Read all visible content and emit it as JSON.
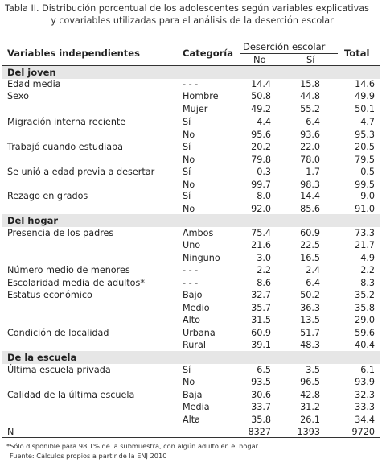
{
  "title": {
    "line1": "Tabla II. Distribución porcentual de los adolescentes según variables explicativas",
    "line2": "y covariables utilizadas para el análisis de la deserción escolar"
  },
  "header": {
    "variables": "Variables independientes",
    "categoria": "Categoría",
    "desercion": "Deserción escolar",
    "no": "No",
    "si": "Sí",
    "total": "Total"
  },
  "sections": {
    "joven": "Del joven",
    "hogar": "Del hogar",
    "escuela": "De la escuela"
  },
  "rows": [
    {
      "var": "Edad media",
      "cat": "- - -",
      "no": "14.4",
      "si": "15.8",
      "total": "14.6"
    },
    {
      "var": "Sexo",
      "cat": "Hombre",
      "no": "50.8",
      "si": "44.8",
      "total": "49.9"
    },
    {
      "var": "",
      "cat": "Mujer",
      "no": "49.2",
      "si": "55.2",
      "total": "50.1"
    },
    {
      "var": "Migración interna reciente",
      "cat": "Sí",
      "no": "4.4",
      "si": "6.4",
      "total": "4.7"
    },
    {
      "var": "",
      "cat": "No",
      "no": "95.6",
      "si": "93.6",
      "total": "95.3"
    },
    {
      "var": "Trabajó cuando estudiaba",
      "cat": "Sí",
      "no": "20.2",
      "si": "22.0",
      "total": "20.5"
    },
    {
      "var": "",
      "cat": "No",
      "no": "79.8",
      "si": "78.0",
      "total": "79.5"
    },
    {
      "var": "Se unió a edad previa a desertar",
      "cat": "Sí",
      "no": "0.3",
      "si": "1.7",
      "total": "0.5"
    },
    {
      "var": "",
      "cat": "No",
      "no": "99.7",
      "si": "98.3",
      "total": "99.5"
    },
    {
      "var": "Rezago en grados",
      "cat": "Sí",
      "no": "8.0",
      "si": "14.4",
      "total": "9.0"
    },
    {
      "var": "",
      "cat": "No",
      "no": "92.0",
      "si": "85.6",
      "total": "91.0"
    },
    {
      "var": "Presencia de los padres",
      "cat": "Ambos",
      "no": "75.4",
      "si": "60.9",
      "total": "73.3"
    },
    {
      "var": "",
      "cat": "Uno",
      "no": "21.6",
      "si": "22.5",
      "total": "21.7"
    },
    {
      "var": "",
      "cat": "Ninguno",
      "no": "3.0",
      "si": "16.5",
      "total": "4.9"
    },
    {
      "var": "Número medio de menores",
      "cat": "- - -",
      "no": "2.2",
      "si": "2.4",
      "total": "2.2"
    },
    {
      "var": "Escolaridad media de adultos*",
      "cat": "- - -",
      "no": "8.6",
      "si": "6.4",
      "total": "8.3"
    },
    {
      "var": "Estatus económico",
      "cat": "Bajo",
      "no": "32.7",
      "si": "50.2",
      "total": "35.2"
    },
    {
      "var": "",
      "cat": "Medio",
      "no": "35.7",
      "si": "36.3",
      "total": "35.8"
    },
    {
      "var": "",
      "cat": "Alto",
      "no": "31.5",
      "si": "13.5",
      "total": "29.0"
    },
    {
      "var": "Condición de localidad",
      "cat": "Urbana",
      "no": "60.9",
      "si": "51.7",
      "total": "59.6"
    },
    {
      "var": "",
      "cat": "Rural",
      "no": "39.1",
      "si": "48.3",
      "total": "40.4"
    },
    {
      "var": "Última escuela privada",
      "cat": "Sí",
      "no": "6.5",
      "si": "3.5",
      "total": "6.1"
    },
    {
      "var": "",
      "cat": "No",
      "no": "93.5",
      "si": "96.5",
      "total": "93.9"
    },
    {
      "var": "Calidad de la última escuela",
      "cat": "Baja",
      "no": "30.6",
      "si": "42.8",
      "total": "32.3"
    },
    {
      "var": "",
      "cat": "Media",
      "no": "33.7",
      "si": "31.2",
      "total": "33.3"
    },
    {
      "var": "",
      "cat": "Alta",
      "no": "35.8",
      "si": "26.1",
      "total": "34.4"
    },
    {
      "var": "N",
      "cat": "",
      "no": "8327",
      "si": "1393",
      "total": "9720"
    }
  ],
  "footnotes": {
    "note": "*Sólo disponible para 98.1% de la submuestra, con algún adulto en el hogar.",
    "source": "Fuente: Cálculos propios a partir de la ENJ 2010"
  }
}
